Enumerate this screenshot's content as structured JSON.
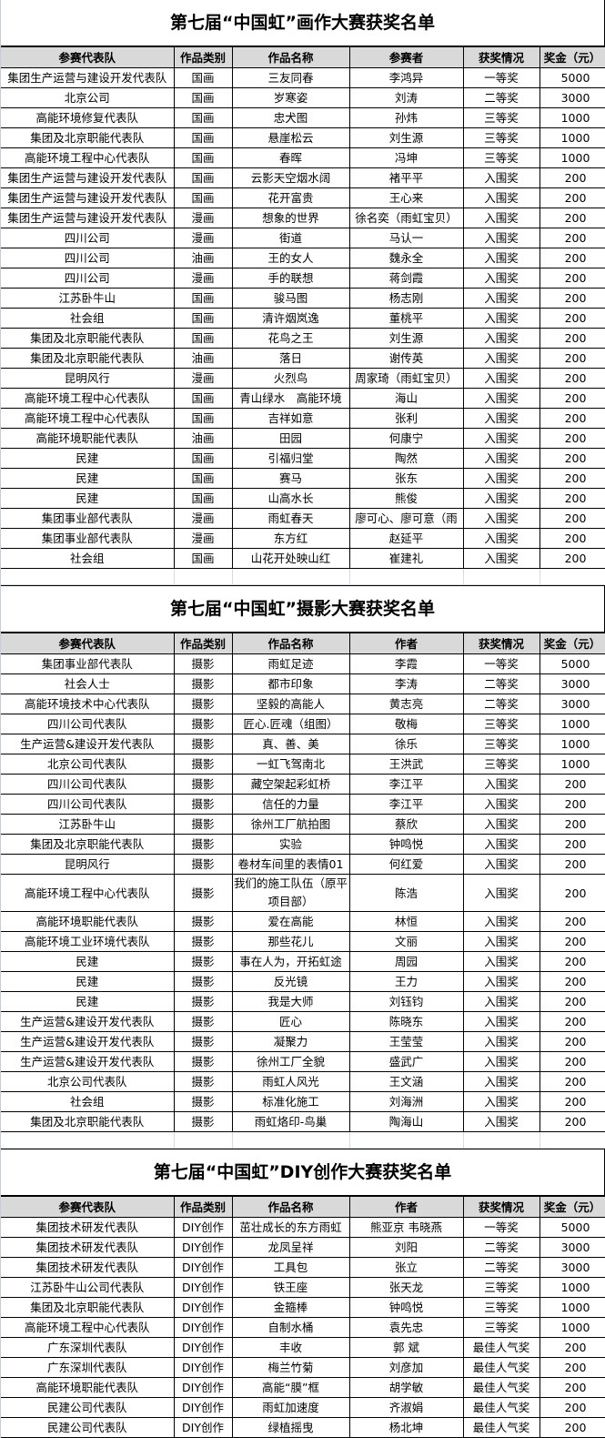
{
  "tables": [
    {
      "title": "第七届“中国虹”画作大赛获奖名单",
      "headers": [
        "参赛代表队",
        "作品类别",
        "作品名称",
        "参赛者",
        "获奖情况",
        "奖金（元）"
      ],
      "rows": [
        [
          "集团生产运营与建设开发代表队",
          "国画",
          "三友同春",
          "李鸿异",
          "一等奖",
          "5000"
        ],
        [
          "北京公司",
          "国画",
          "岁寒姿",
          "刘涛",
          "二等奖",
          "3000"
        ],
        [
          "高能环境修复代表队",
          "国画",
          "忠犬图",
          "孙炜",
          "三等奖",
          "1000"
        ],
        [
          "集团及北京职能代表队",
          "国画",
          "悬崖松云",
          "刘生源",
          "三等奖",
          "1000"
        ],
        [
          "高能环境工程中心代表队",
          "国画",
          "春晖",
          "冯坤",
          "三等奖",
          "1000"
        ],
        [
          "集团生产运营与建设开发代表队",
          "国画",
          "云影天空烟水阔",
          "褚平平",
          "入围奖",
          "200"
        ],
        [
          "集团生产运营与建设开发代表队",
          "国画",
          "花开富贵",
          "王心来",
          "入围奖",
          "200"
        ],
        [
          "集团生产运营与建设开发代表队",
          "漫画",
          "想象的世界",
          "徐名奕（雨虹宝贝）",
          "入围奖",
          "200"
        ],
        [
          "四川公司",
          "漫画",
          "街道",
          "马认一",
          "入围奖",
          "200"
        ],
        [
          "四川公司",
          "油画",
          "王的女人",
          "魏永全",
          "入围奖",
          "200"
        ],
        [
          "四川公司",
          "漫画",
          "手的联想",
          "蒋剑霞",
          "入围奖",
          "200"
        ],
        [
          "江苏卧牛山",
          "国画",
          "骏马图",
          "杨志刚",
          "入围奖",
          "200"
        ],
        [
          "社会组",
          "国画",
          "清许烟岚逸",
          "董桃平",
          "入围奖",
          "200"
        ],
        [
          "集团及北京职能代表队",
          "国画",
          "花鸟之王",
          "刘生源",
          "入围奖",
          "200"
        ],
        [
          "集团及北京职能代表队",
          "油画",
          "落日",
          "谢传英",
          "入围奖",
          "200"
        ],
        [
          "昆明风行",
          "漫画",
          "火烈鸟",
          "周家琦（雨虹宝贝）",
          "入围奖",
          "200"
        ],
        [
          "高能环境工程中心代表队",
          "国画",
          "青山绿水　高能环境",
          "海山",
          "入围奖",
          "200"
        ],
        [
          "高能环境工程中心代表队",
          "国画",
          "吉祥如意",
          "张利",
          "入围奖",
          "200"
        ],
        [
          "高能环境职能代表队",
          "油画",
          "田园",
          "何康宁",
          "入围奖",
          "200"
        ],
        [
          "民建",
          "国画",
          "引福归堂",
          "陶然",
          "入围奖",
          "200"
        ],
        [
          "民建",
          "国画",
          "赛马",
          "张东",
          "入围奖",
          "200"
        ],
        [
          "民建",
          "国画",
          "山高水长",
          "熊俊",
          "入围奖",
          "200"
        ],
        [
          "集团事业部代表队",
          "漫画",
          "雨虹春天",
          "廖可心、廖可意（雨",
          "入围奖",
          "200"
        ],
        [
          "集团事业部代表队",
          "漫画",
          "东方红",
          "赵延平",
          "入围奖",
          "200"
        ],
        [
          "社会组",
          "国画",
          "山花开处映山红",
          "崔建礼",
          "入围奖",
          "200"
        ]
      ]
    },
    {
      "title": "第七届“中国虹”摄影大赛获奖名单",
      "headers": [
        "参赛代表队",
        "作品类别",
        "作品名称",
        "作者",
        "获奖情况",
        "奖金（元）"
      ],
      "rows": [
        [
          "集团事业部代表队",
          "摄影",
          "雨虹足迹",
          "李霞",
          "一等奖",
          "5000"
        ],
        [
          "社会人士",
          "摄影",
          "都市印象",
          "李涛",
          "二等奖",
          "3000"
        ],
        [
          "高能环境技术中心代表队",
          "摄影",
          "坚毅的高能人",
          "黄志亮",
          "二等奖",
          "3000"
        ],
        [
          "四川公司代表队",
          "摄影",
          "匠心.匠魂（组图）",
          "敬梅",
          "三等奖",
          "1000"
        ],
        [
          "生产运营&建设开发代表队",
          "摄影",
          "真、善、美",
          "徐乐",
          "三等奖",
          "1000"
        ],
        [
          "北京公司代表队",
          "摄影",
          "一虹飞驾南北",
          "王洪武",
          "三等奖",
          "1000"
        ],
        [
          "四川公司代表队",
          "摄影",
          "藏空架起彩虹桥",
          "李江平",
          "入围奖",
          "200"
        ],
        [
          "四川公司代表队",
          "摄影",
          "信任的力量",
          "李江平",
          "入围奖",
          "200"
        ],
        [
          "江苏卧牛山",
          "摄影",
          "徐州工厂航拍图",
          "蔡欣",
          "入围奖",
          "200"
        ],
        [
          "集团及北京职能代表队",
          "摄影",
          "实验",
          "钟鸣悦",
          "入围奖",
          "200"
        ],
        [
          "昆明风行",
          "摄影",
          "卷材车间里的表情01",
          "何红爱",
          "入围奖",
          "200"
        ],
        [
          "高能环境工程中心代表队",
          "摄影",
          "我们的施工队伍（原平项目部）",
          "陈浩",
          "入围奖",
          "200"
        ],
        [
          "高能环境职能代表队",
          "摄影",
          "爱在高能",
          "林恒",
          "入围奖",
          "200"
        ],
        [
          "高能环境工业环境代表队",
          "摄影",
          "那些花儿",
          "文丽",
          "入围奖",
          "200"
        ],
        [
          "民建",
          "摄影",
          "事在人为，开拓虹途",
          "周园",
          "入围奖",
          "200"
        ],
        [
          "民建",
          "摄影",
          "反光镜",
          "王力",
          "入围奖",
          "200"
        ],
        [
          "民建",
          "摄影",
          "我是大师",
          "刘钰钧",
          "入围奖",
          "200"
        ],
        [
          "生产运营&建设开发代表队",
          "摄影",
          "匠心",
          "陈晓东",
          "入围奖",
          "200"
        ],
        [
          "生产运营&建设开发代表队",
          "摄影",
          "凝聚力",
          "王莹莹",
          "入围奖",
          "200"
        ],
        [
          "生产运营&建设开发代表队",
          "摄影",
          "徐州工厂全貌",
          "盛武广",
          "入围奖",
          "200"
        ],
        [
          "北京公司代表队",
          "摄影",
          "雨虹人风光",
          "王文涵",
          "入围奖",
          "200"
        ],
        [
          "社会组",
          "摄影",
          "标准化施工",
          "刘海洲",
          "入围奖",
          "200"
        ],
        [
          "集团及北京职能代表队",
          "摄影",
          "雨虹烙印-鸟巢",
          "陶海山",
          "入围奖",
          "200"
        ]
      ]
    },
    {
      "title": "第七届“中国虹”DIY创作大赛获奖名单",
      "headers": [
        "参赛代表队",
        "作品类别",
        "作品名称",
        "作者",
        "获奖情况",
        "奖金（元）"
      ],
      "rows": [
        [
          "集团技术研发代表队",
          "DIY创作",
          "茁壮成长的东方雨虹",
          "熊亚京 韦晓燕",
          "一等奖",
          "5000"
        ],
        [
          "集团技术研发代表队",
          "DIY创作",
          "龙凤呈祥",
          "刘阳",
          "二等奖",
          "3000"
        ],
        [
          "集团技术研发代表队",
          "DIY创作",
          "工具包",
          "张立",
          "二等奖",
          "3000"
        ],
        [
          "江苏卧牛山公司代表队",
          "DIY创作",
          "铁王座",
          "张天龙",
          "三等奖",
          "1000"
        ],
        [
          "集团及北京职能代表队",
          "DIY创作",
          "金箍棒",
          "钟鸣悦",
          "三等奖",
          "1000"
        ],
        [
          "高能环境工程中心代表队",
          "DIY创作",
          "自制水桶",
          "袁先忠",
          "三等奖",
          "1000"
        ],
        [
          "广东深圳代表队",
          "DIY创作",
          "丰收",
          "郭  斌",
          "最佳人气奖",
          "200"
        ],
        [
          "广东深圳代表队",
          "DIY创作",
          "梅兰竹菊",
          "刘彦加",
          "最佳人气奖",
          "200"
        ],
        [
          "高能环境职能代表队",
          "DIY创作",
          "高能“膜”框",
          "胡学敏",
          "最佳人气奖",
          "200"
        ],
        [
          "民建公司代表队",
          "DIY创作",
          "雨虹加速度",
          "齐淑娟",
          "最佳人气奖",
          "200"
        ],
        [
          "民建公司代表队",
          "DIY创作",
          "绿植摇曳",
          "杨北坤",
          "最佳人气奖",
          "200"
        ]
      ]
    }
  ]
}
